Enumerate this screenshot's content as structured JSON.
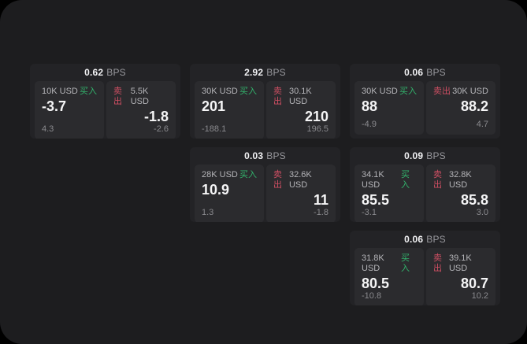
{
  "labels": {
    "buy": "买入",
    "sell": "卖出",
    "bps_unit": "BPS"
  },
  "colors": {
    "outer_background": "#000000",
    "surface": "#1d1d1f",
    "card": "#232326",
    "panel": "#2b2b2e",
    "buy_green": "#32b36c",
    "sell_red": "#cf4f63",
    "value_white": "#f5f5f6",
    "muted_gray": "#8a8a8e"
  },
  "cards": [
    {
      "bps": "0.62",
      "buy": {
        "amount": "10K USD",
        "value": "-3.7",
        "sub": "4.3"
      },
      "sell": {
        "amount": "5.5K USD",
        "value": "-1.8",
        "sub": "-2.6"
      }
    },
    {
      "bps": "2.92",
      "buy": {
        "amount": "30K USD",
        "value": "201",
        "sub": "-188.1"
      },
      "sell": {
        "amount": "30.1K USD",
        "value": "210",
        "sub": "196.5"
      }
    },
    {
      "bps": "0.06",
      "buy": {
        "amount": "30K USD",
        "value": "88",
        "sub": "-4.9"
      },
      "sell": {
        "amount": "30K USD",
        "value": "88.2",
        "sub": "4.7"
      }
    },
    {
      "bps": "0.03",
      "buy": {
        "amount": "28K USD",
        "value": "10.9",
        "sub": "1.3"
      },
      "sell": {
        "amount": "32.6K USD",
        "value": "11",
        "sub": "-1.8"
      }
    },
    {
      "bps": "0.09",
      "buy": {
        "amount": "34.1K USD",
        "value": "85.5",
        "sub": "-3.1"
      },
      "sell": {
        "amount": "32.8K USD",
        "value": "85.8",
        "sub": "3.0"
      }
    },
    {
      "bps": "0.06",
      "buy": {
        "amount": "31.8K USD",
        "value": "80.5",
        "sub": "-10.8"
      },
      "sell": {
        "amount": "39.1K USD",
        "value": "80.7",
        "sub": "10.2"
      }
    }
  ]
}
